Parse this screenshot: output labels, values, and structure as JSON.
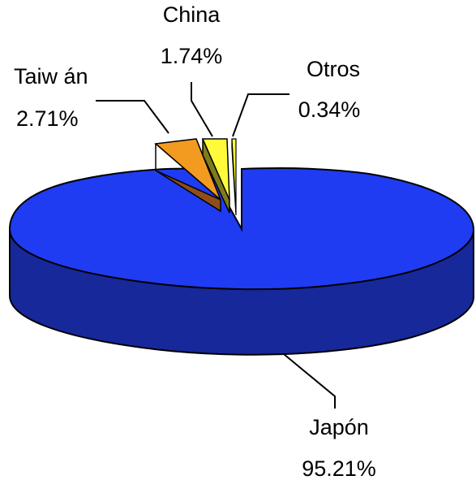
{
  "chart_data": {
    "type": "pie",
    "title": "",
    "three_d": true,
    "grid": false,
    "legend": "none",
    "slices": [
      {
        "name": "Japón",
        "value": 95.21,
        "label": "95.21%",
        "color": "#1f3cf2",
        "side_color": "#17289a"
      },
      {
        "name": "Taiw án",
        "value": 2.71,
        "label": "2.71%",
        "color": "#f39a20",
        "side_color": "#8f4d1a"
      },
      {
        "name": "China",
        "value": 1.74,
        "label": "1.74%",
        "color": "#fffb3a",
        "side_color": "#7f7b1c"
      },
      {
        "name": "Otros",
        "value": 0.34,
        "label": "0.34%",
        "color": "#fffb3a",
        "side_color": "#7f7b1c"
      }
    ]
  }
}
